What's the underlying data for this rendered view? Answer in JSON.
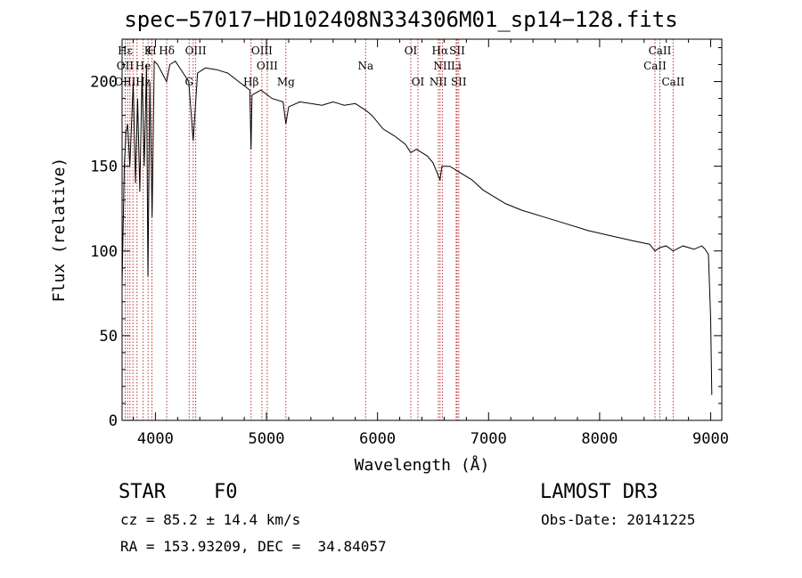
{
  "chart_data": {
    "type": "line",
    "title": "spec−57017−HD102408N334306M01_sp14−128.fits",
    "xlabel": "Wavelength (Å)",
    "ylabel": "Flux (relative)",
    "xlim": [
      3700,
      9100
    ],
    "ylim": [
      0,
      225
    ],
    "x_ticks": [
      4000,
      5000,
      6000,
      7000,
      8000,
      9000
    ],
    "y_ticks": [
      0,
      50,
      100,
      150,
      200
    ],
    "series": [
      {
        "name": "spectrum",
        "x": [
          3700,
          3720,
          3735,
          3750,
          3770,
          3800,
          3820,
          3840,
          3860,
          3880,
          3900,
          3920,
          3933,
          3950,
          3970,
          3990,
          4020,
          4060,
          4100,
          4130,
          4180,
          4250,
          4300,
          4340,
          4380,
          4450,
          4550,
          4650,
          4750,
          4850,
          4861,
          4870,
          4950,
          5050,
          5150,
          5175,
          5200,
          5300,
          5400,
          5500,
          5600,
          5700,
          5800,
          5895,
          5950,
          6050,
          6150,
          6250,
          6300,
          6350,
          6450,
          6500,
          6563,
          6580,
          6650,
          6750,
          6850,
          6950,
          7050,
          7150,
          7300,
          7500,
          7700,
          7900,
          8100,
          8300,
          8450,
          8498,
          8542,
          8600,
          8662,
          8750,
          8850,
          8920,
          8950,
          8980,
          9000,
          9010
        ],
        "y": [
          80,
          150,
          170,
          175,
          150,
          200,
          140,
          190,
          135,
          205,
          150,
          210,
          85,
          200,
          120,
          212,
          210,
          205,
          200,
          210,
          212,
          205,
          200,
          165,
          205,
          208,
          207,
          205,
          200,
          195,
          160,
          192,
          195,
          190,
          188,
          175,
          185,
          188,
          187,
          186,
          188,
          186,
          187,
          183,
          180,
          172,
          168,
          163,
          158,
          160,
          156,
          152,
          142,
          150,
          150,
          146,
          142,
          136,
          132,
          128,
          124,
          120,
          116,
          112,
          109,
          106,
          104,
          100,
          102,
          103,
          100,
          103,
          101,
          103,
          101,
          98,
          60,
          15
        ]
      }
    ],
    "lines": [
      {
        "label": "Hε",
        "wave": 3728,
        "row": 0
      },
      {
        "label": "OII",
        "wave": 3727,
        "row": 1
      },
      {
        "label": "OIII",
        "wave": 3727,
        "row": 2
      },
      {
        "label": "K",
        "wave": 3934,
        "row": 0
      },
      {
        "label": "H",
        "wave": 3969,
        "row": 0
      },
      {
        "label": "He",
        "wave": 3889,
        "row": 1
      },
      {
        "label": "Hz",
        "wave": 3889,
        "row": 2
      },
      {
        "label": "Hδ",
        "wave": 4102,
        "row": 0
      },
      {
        "label": "OIII",
        "wave": 4363,
        "row": 0
      },
      {
        "label": "G",
        "wave": 4304,
        "row": 2
      },
      {
        "label": "OIII",
        "wave": 4959,
        "row": 0
      },
      {
        "label": "OIII",
        "wave": 5007,
        "row": 1
      },
      {
        "label": "Hβ",
        "wave": 4861,
        "row": 2
      },
      {
        "label": "Mg",
        "wave": 5175,
        "row": 2
      },
      {
        "label": "Na",
        "wave": 5893,
        "row": 1
      },
      {
        "label": "OI",
        "wave": 6300,
        "row": 0
      },
      {
        "label": "OI",
        "wave": 6364,
        "row": 2
      },
      {
        "label": "Hα",
        "wave": 6563,
        "row": 0
      },
      {
        "label": "NII",
        "wave": 6584,
        "row": 1
      },
      {
        "label": "NII",
        "wave": 6548,
        "row": 2
      },
      {
        "label": "SII",
        "wave": 6717,
        "row": 0
      },
      {
        "label": "Li",
        "wave": 6708,
        "row": 1
      },
      {
        "label": "SII",
        "wave": 6731,
        "row": 2
      },
      {
        "label": "CaII",
        "wave": 8542,
        "row": 0
      },
      {
        "label": "CaII",
        "wave": 8498,
        "row": 1
      },
      {
        "label": "CaII",
        "wave": 8662,
        "row": 2
      }
    ],
    "line_waves": [
      3728,
      3750,
      3771,
      3798,
      3835,
      3889,
      3934,
      3969,
      4102,
      4304,
      4340,
      4363,
      4861,
      4959,
      5007,
      5175,
      5893,
      6300,
      6364,
      6548,
      6563,
      6584,
      6708,
      6717,
      6731,
      8498,
      8542,
      8662
    ],
    "colors": {
      "axis": "#000000",
      "spectrum": "#000000",
      "line_marker": "#c03030"
    }
  },
  "info": {
    "object_type": "STAR",
    "subclass": "F0",
    "survey": "LAMOST DR3",
    "cz": "cz = 85.2 ± 14.4 km/s",
    "obs_date": "Obs-Date: 20141225",
    "radec": "RA = 153.93209, DEC =  34.84057"
  }
}
